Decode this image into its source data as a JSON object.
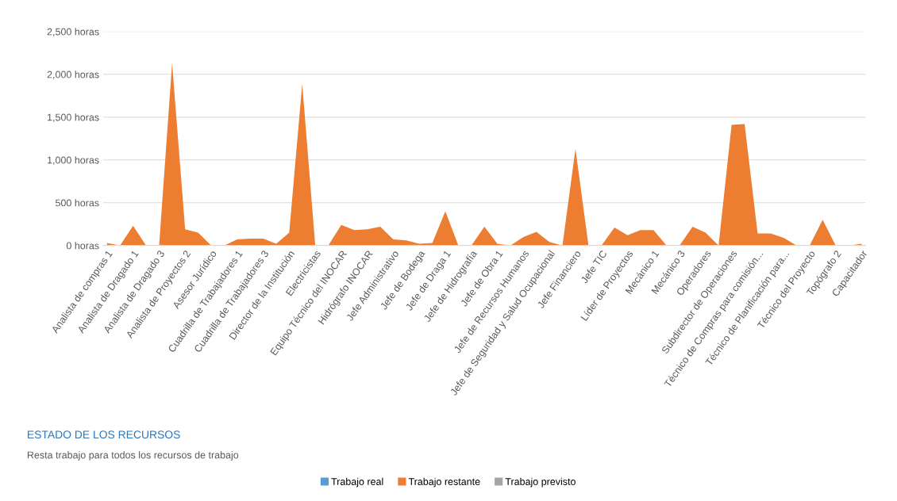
{
  "chart_data": {
    "type": "area",
    "title": "ESTADO DE LOS RECURSOS",
    "subtitle": "Resta trabajo para todos los recursos de trabajo",
    "categories": [
      "Analista de compras 1",
      null,
      "Analista de Dragado 1",
      null,
      "Analista de Dragado 3",
      null,
      "Analista de Proyectos 2",
      null,
      "Asesor Jurídico",
      null,
      "Cuadrilla de Trabajadores 1",
      null,
      "Cuadrilla de Trabajadores 3",
      null,
      "Director de la Institución",
      null,
      "Electricistas",
      null,
      "Equipo Técnico del INOCAR",
      null,
      "Hidrógrafo INOCAR",
      null,
      "Jefe Administrativo",
      null,
      "Jefe de Bodega",
      null,
      "Jefe de Draga 1",
      null,
      "Jefe de Hidrografía",
      null,
      "Jefe de Obra 1",
      null,
      "Jefe de Recursos Humanos",
      null,
      "Jefe de Seguridad y Salud Ocupacional",
      null,
      "Jefe Financiero",
      null,
      "Jefe TIC",
      null,
      "Líder de Proyectos",
      null,
      "Mecánico 1",
      null,
      "Mecánico 3",
      null,
      "Operadores",
      null,
      "Subdirector de Operaciones",
      null,
      "Técnico de Compras para comisión...",
      null,
      "Técnico de Planificación para...",
      null,
      "Técnico del Proyecto",
      null,
      "Topógrafo 2",
      null,
      "Capacitador"
    ],
    "series": [
      {
        "name": "Trabajo real",
        "color": "#5b9bd5",
        "values": [
          null,
          null,
          null,
          null,
          null,
          null,
          null,
          null,
          null,
          null,
          null,
          null,
          null,
          null,
          null,
          null,
          null,
          null,
          null,
          null,
          null,
          null,
          null,
          null,
          null,
          null,
          null,
          null,
          null,
          null,
          null,
          null,
          null,
          null,
          null,
          null,
          null,
          null,
          null,
          null,
          null,
          null,
          null,
          null,
          null,
          null,
          null,
          null,
          null,
          null,
          null,
          null,
          null,
          null,
          null,
          null,
          null,
          null,
          null
        ]
      },
      {
        "name": "Trabajo restante",
        "color": "#ed7d31",
        "values": [
          30,
          0,
          230,
          0,
          0,
          2130,
          190,
          150,
          0,
          0,
          70,
          80,
          80,
          20,
          150,
          1890,
          0,
          0,
          240,
          180,
          190,
          220,
          70,
          60,
          20,
          30,
          400,
          0,
          0,
          220,
          20,
          0,
          100,
          160,
          40,
          0,
          1130,
          0,
          0,
          210,
          120,
          180,
          180,
          0,
          0,
          220,
          150,
          0,
          1410,
          1420,
          140,
          140,
          90,
          0,
          0,
          300,
          0,
          0,
          20
        ]
      },
      {
        "name": "Trabajo previsto",
        "color": "#a5a5a5",
        "values": [
          null,
          null,
          null,
          null,
          null,
          null,
          null,
          null,
          null,
          null,
          null,
          null,
          null,
          null,
          null,
          null,
          null,
          null,
          null,
          null,
          null,
          null,
          null,
          null,
          null,
          null,
          null,
          null,
          null,
          null,
          null,
          null,
          null,
          null,
          null,
          null,
          null,
          null,
          null,
          null,
          null,
          null,
          null,
          null,
          null,
          null,
          null,
          null,
          null,
          null,
          null,
          null,
          null,
          null,
          null,
          null,
          null,
          null,
          null
        ]
      }
    ],
    "ylim": [
      0,
      2500
    ],
    "yticks": [
      {
        "value": 0,
        "label": "0 horas"
      },
      {
        "value": 500,
        "label": "500 horas"
      },
      {
        "value": 1000,
        "label": "1,000 horas"
      },
      {
        "value": 1500,
        "label": "1,500 horas"
      },
      {
        "value": 2000,
        "label": "2,000 horas"
      },
      {
        "value": 2500,
        "label": "2,500 horas"
      }
    ],
    "grid": "y",
    "legend": "bottom"
  }
}
